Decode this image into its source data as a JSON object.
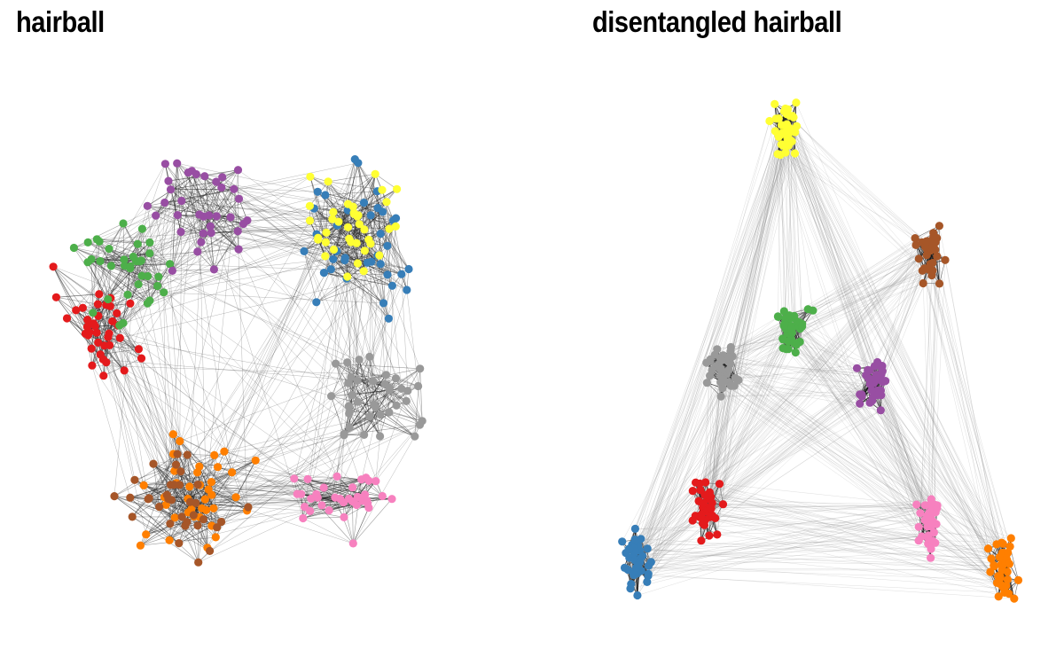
{
  "panels": [
    {
      "title": "hairball"
    },
    {
      "title": "disentangled hairball"
    }
  ],
  "groups": [
    {
      "id": "red",
      "color": "#e41a1c"
    },
    {
      "id": "blue",
      "color": "#377eb8"
    },
    {
      "id": "green",
      "color": "#4daf4a"
    },
    {
      "id": "purple",
      "color": "#984ea3"
    },
    {
      "id": "orange",
      "color": "#ff7f00"
    },
    {
      "id": "yellow",
      "color": "#ffff33"
    },
    {
      "id": "brown",
      "color": "#a65628"
    },
    {
      "id": "pink",
      "color": "#f781bf"
    },
    {
      "id": "gray",
      "color": "#999999"
    }
  ]
}
